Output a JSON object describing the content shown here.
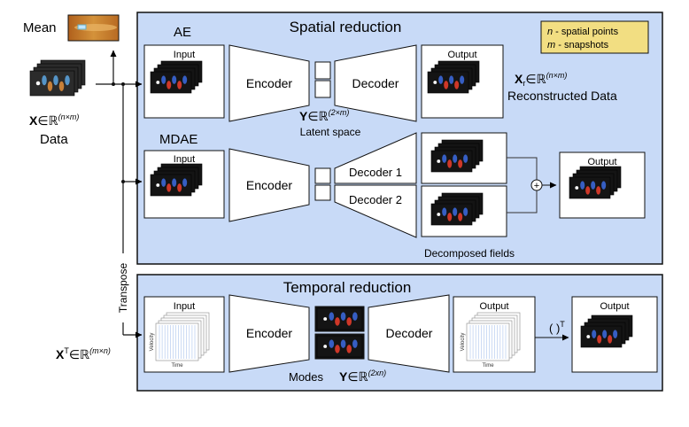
{
  "left": {
    "mean_label": "Mean",
    "data_symbol": "X",
    "data_set": "∈ℝ",
    "data_dims": "(n×m)",
    "data_label": "Data",
    "transpose_label": "Transpose",
    "xt_symbol": "X",
    "xt_sup": "T",
    "xt_set": "∈ℝ",
    "xt_dims": "(m×n)"
  },
  "spatial": {
    "title": "Spatial reduction",
    "legend": [
      {
        "symbol": "n",
        "text": " - spatial points"
      },
      {
        "symbol": "m",
        "text": " - snapshots"
      }
    ],
    "ae": {
      "title": "AE",
      "input_label": "Input",
      "encoder_label": "Encoder",
      "decoder_label": "Decoder",
      "output_label": "Output",
      "latent_symbol": "Y",
      "latent_set": "∈ℝ",
      "latent_dims": "(2×m)",
      "latent_caption": "Latent space",
      "recon_symbol": "X",
      "recon_sub": "r",
      "recon_set": "∈ℝ",
      "recon_dims": "(n×m)",
      "recon_caption": "Reconstructed Data"
    },
    "mdae": {
      "title": "MDAE",
      "input_label": "Input",
      "encoder_label": "Encoder",
      "decoder1_label": "Decoder 1",
      "decoder2_label": "Decoder 2",
      "output_label": "Output",
      "sum_symbol": "+",
      "decomposed_caption": "Decomposed fields"
    }
  },
  "temporal": {
    "title": "Temporal reduction",
    "input_label": "Input",
    "encoder_label": "Encoder",
    "decoder_label": "Decoder",
    "output_label": "Output",
    "final_output_label": "Output",
    "modes_label": "Modes",
    "modes_symbol": "Y",
    "modes_set": "∈ℝ",
    "modes_dims": "(2xn)",
    "transpose_op": "( )",
    "transpose_op_sup": "T",
    "plot_ylabel": "Velocity",
    "plot_xlabel": "Time"
  },
  "colors": {
    "panel_fill": "#c8daf7",
    "legend_fill": "#f2de82",
    "mean_field": "#c87a2a",
    "field_bg": "#141414",
    "mode_red": "#e23b2a",
    "mode_blue": "#3a66d6"
  }
}
